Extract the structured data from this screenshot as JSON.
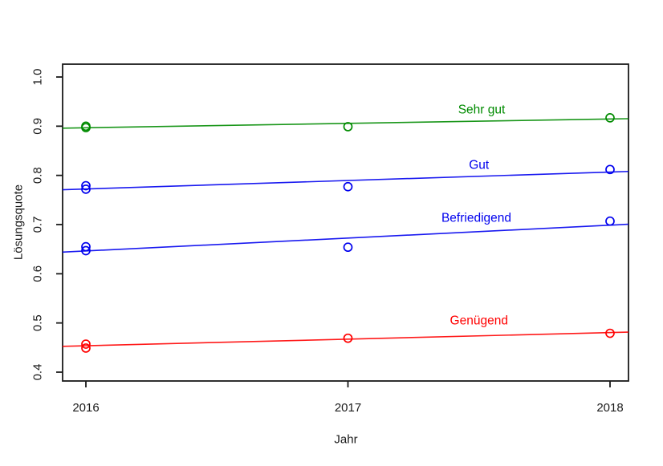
{
  "chart_data": {
    "type": "scatter",
    "title": "",
    "xlabel": "Jahr",
    "ylabel": "Lösungsquote",
    "xlim": [
      2015.911,
      2018.07
    ],
    "ylim": [
      0.4,
      1.0
    ],
    "grid": false,
    "legend_position": "inline-labels",
    "axis_color": "#1a1a1a",
    "background": "#ffffff",
    "x_ticks": [
      {
        "label": "2016",
        "value": 2016
      },
      {
        "label": "2017",
        "value": 2017
      },
      {
        "label": "2018",
        "value": 2018
      }
    ],
    "y_ticks": [
      {
        "label": "0.4",
        "value": 0.4
      },
      {
        "label": "0.5",
        "value": 0.5
      },
      {
        "label": "0.6",
        "value": 0.6
      },
      {
        "label": "0.7",
        "value": 0.7
      },
      {
        "label": "0.8",
        "value": 0.8
      },
      {
        "label": "0.9",
        "value": 0.9
      },
      {
        "label": "1.0",
        "value": 1.0
      }
    ],
    "series": [
      {
        "id": "sehr-gut",
        "name": "Sehr gut",
        "color": "#008B00",
        "points": [
          [
            2016,
            0.897
          ],
          [
            2016,
            0.9
          ],
          [
            2017,
            0.899
          ],
          [
            2018,
            0.917
          ]
        ],
        "trend": {
          "slope": 0.0089,
          "intercept_2016": 0.8968
        }
      },
      {
        "id": "gut",
        "name": "Gut",
        "color": "#0000EE",
        "points": [
          [
            2016,
            0.772
          ],
          [
            2016,
            0.779
          ],
          [
            2017,
            0.777
          ],
          [
            2018,
            0.812
          ]
        ],
        "trend": {
          "slope": 0.0172,
          "intercept_2016": 0.7724
        }
      },
      {
        "id": "befriedigend",
        "name": "Befriedigend",
        "color": "#0000EE",
        "points": [
          [
            2016,
            0.647
          ],
          [
            2016,
            0.655
          ],
          [
            2017,
            0.654
          ],
          [
            2018,
            0.707
          ]
        ],
        "trend": {
          "slope": 0.0262,
          "intercept_2016": 0.6464
        }
      },
      {
        "id": "genuegend",
        "name": "Genügend",
        "color": "#FF0000",
        "points": [
          [
            2016,
            0.449
          ],
          [
            2016,
            0.457
          ],
          [
            2017,
            0.469
          ],
          [
            2018,
            0.479
          ]
        ],
        "trend": {
          "slope": 0.0134,
          "intercept_2016": 0.4537
        }
      }
    ],
    "annotations": [
      {
        "id": "sehr-gut",
        "text": "Sehr gut",
        "color": "#008B00",
        "x": 2017.51,
        "y": 0.935
      },
      {
        "id": "gut",
        "text": "Gut",
        "color": "#0000EE",
        "x": 2017.5,
        "y": 0.822
      },
      {
        "id": "befriedigend",
        "text": "Befriedigend",
        "color": "#0000EE",
        "x": 2017.49,
        "y": 0.715
      },
      {
        "id": "genuegend",
        "text": "Genügend",
        "color": "#FF0000",
        "x": 2017.5,
        "y": 0.506
      }
    ]
  }
}
